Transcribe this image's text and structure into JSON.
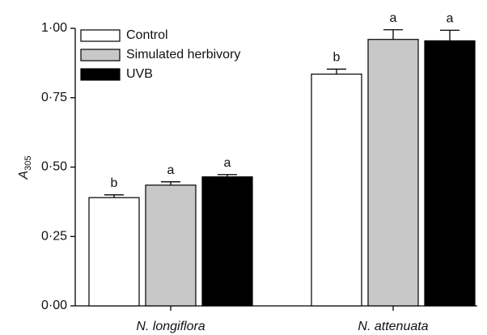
{
  "chart_data": {
    "type": "bar",
    "ylabel": "A",
    "ylabel_sub": "305",
    "categories": [
      "N. longiflora",
      "N. attenuata"
    ],
    "series": [
      {
        "name": "Control",
        "color": "#ffffff",
        "values": [
          0.39,
          0.835
        ],
        "errors": [
          0.01,
          0.018
        ],
        "letters": [
          "b",
          "b"
        ]
      },
      {
        "name": "Simulated herbivory",
        "color": "#c8c8c8",
        "values": [
          0.435,
          0.96
        ],
        "errors": [
          0.012,
          0.035
        ],
        "letters": [
          "a",
          "a"
        ]
      },
      {
        "name": "UVB",
        "color": "#000000",
        "values": [
          0.465,
          0.955
        ],
        "errors": [
          0.008,
          0.038
        ],
        "letters": [
          "a",
          "a"
        ]
      }
    ],
    "ylim": [
      0,
      1
    ],
    "yticks": [
      {
        "value": 0,
        "label": "0·00"
      },
      {
        "value": 0.25,
        "label": "0·25"
      },
      {
        "value": 0.5,
        "label": "0·50"
      },
      {
        "value": 0.75,
        "label": "0·75"
      },
      {
        "value": 1,
        "label": "1·00"
      }
    ],
    "legend": "upper left"
  }
}
